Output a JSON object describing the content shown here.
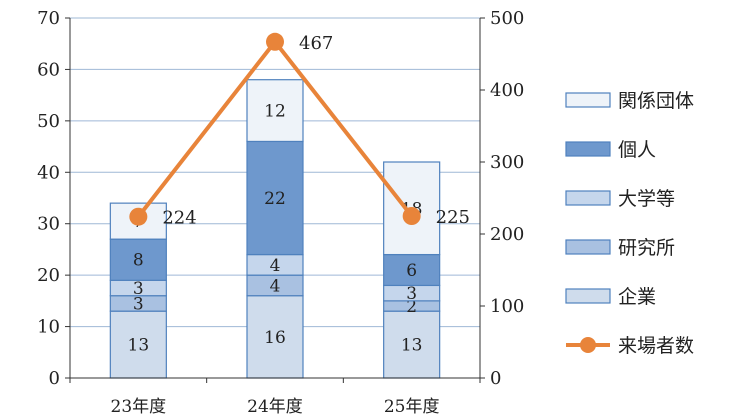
{
  "chart_data": {
    "type": "bar",
    "stacked": true,
    "categories": [
      "23年度",
      "24年度",
      "25年度"
    ],
    "series": [
      {
        "name": "企業",
        "values": [
          13,
          16,
          13
        ],
        "color": "#cfdcec"
      },
      {
        "name": "研究所",
        "values": [
          3,
          4,
          2
        ],
        "color": "#a9c1e1"
      },
      {
        "name": "大学等",
        "values": [
          3,
          4,
          3
        ],
        "color": "#c5d6ec"
      },
      {
        "name": "個人",
        "values": [
          8,
          22,
          6
        ],
        "color": "#6e98cd"
      },
      {
        "name": "関係団体",
        "values": [
          7,
          12,
          18
        ],
        "color": "#eef3f9"
      }
    ],
    "line_series": {
      "name": "来場者数",
      "values": [
        224,
        467,
        225
      ],
      "color": "#e8843a",
      "axis": "right"
    },
    "ylim": [
      0,
      70
    ],
    "y_ticks": [
      0,
      10,
      20,
      30,
      40,
      50,
      60,
      70
    ],
    "y2lim": [
      0,
      500
    ],
    "y2_ticks": [
      0,
      100,
      200,
      300,
      400,
      500
    ],
    "grid": true,
    "legend_position": "right",
    "legend_order": [
      "関係団体",
      "個人",
      "大学等",
      "研究所",
      "企業",
      "来場者数"
    ],
    "bar_outline_color": "#4f81bd",
    "grid_color": "#9fb8d6"
  }
}
